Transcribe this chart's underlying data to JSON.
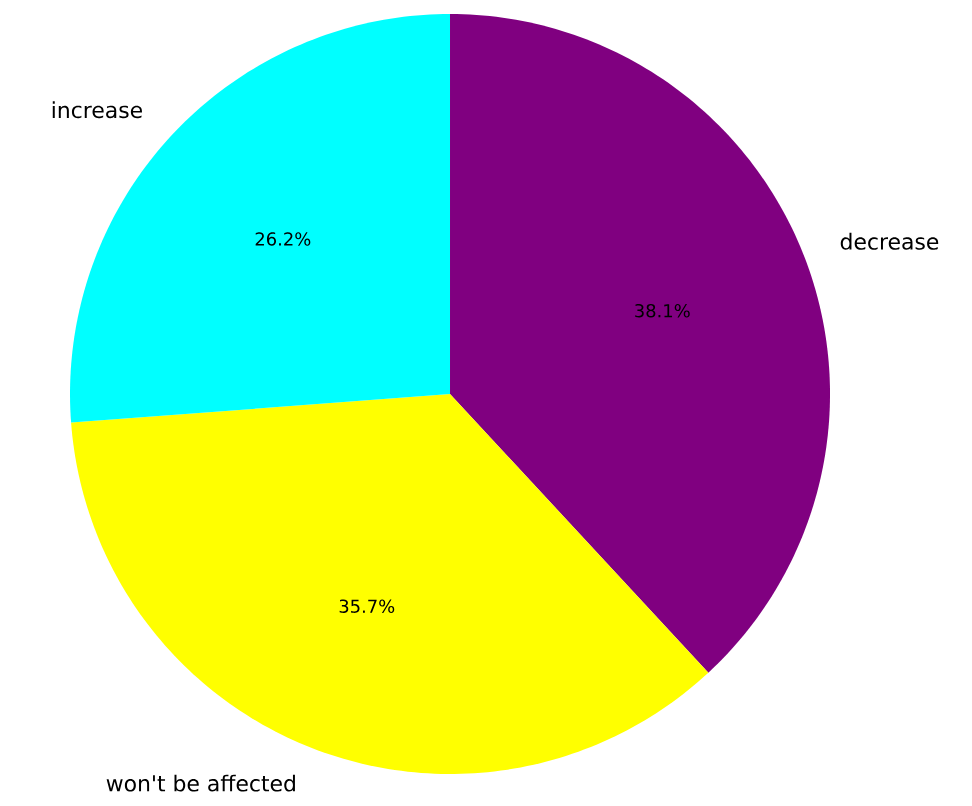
{
  "chart_data": {
    "type": "pie",
    "categories": [
      "decrease",
      "won't be affected",
      "increase"
    ],
    "values": [
      38.1,
      35.7,
      26.2
    ],
    "colors": [
      "#800080",
      "#ffff00",
      "#00ffff"
    ],
    "value_labels": [
      "38.1%",
      "35.7%",
      "26.2%"
    ]
  }
}
